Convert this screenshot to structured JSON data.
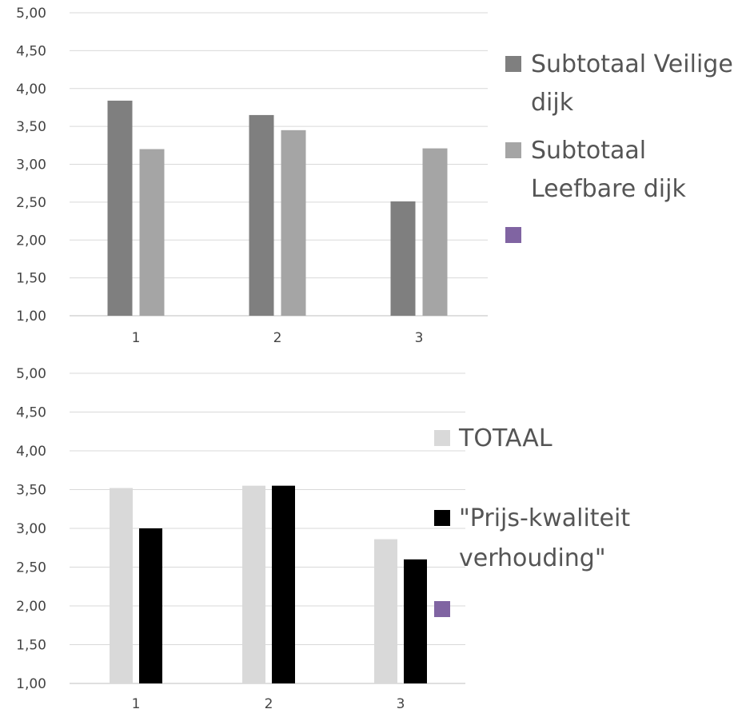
{
  "chart_data": [
    {
      "type": "bar",
      "categories": [
        "1",
        "2",
        "3"
      ],
      "series": [
        {
          "name": "Subtotaal Veilige dijk",
          "values": [
            3.84,
            3.65,
            2.51
          ],
          "color": "#7f7f7f",
          "legend_lines": [
            "Subtotaal Veilige",
            "dijk"
          ]
        },
        {
          "name": "Subtotaal Leefbare dijk",
          "values": [
            3.2,
            3.45,
            3.21
          ],
          "color": "#a5a5a5",
          "legend_lines": [
            "Subtotaal",
            "Leefbare dijk"
          ]
        }
      ],
      "extra_legend_color": "#8064a2",
      "y_ticks": [
        "1,00",
        "1,50",
        "2,00",
        "2,50",
        "3,00",
        "3,50",
        "4,00",
        "4,50",
        "5,00"
      ],
      "ylim": [
        1,
        5
      ],
      "grid": true,
      "legend": "right"
    },
    {
      "type": "bar",
      "categories": [
        "1",
        "2",
        "3"
      ],
      "series": [
        {
          "name": "TOTAAL",
          "values": [
            3.52,
            3.55,
            2.86
          ],
          "color": "#d9d9d9",
          "legend_lines": [
            "TOTAAL"
          ]
        },
        {
          "name": "\"Prijs-kwaliteit verhouding\"",
          "values": [
            3.0,
            3.55,
            2.6
          ],
          "color": "#000000",
          "legend_lines": [
            "\"Prijs-kwaliteit",
            "verhouding\""
          ]
        }
      ],
      "extra_legend_color": "#8064a2",
      "y_ticks": [
        "1,00",
        "1,50",
        "2,00",
        "2,50",
        "3,00",
        "3,50",
        "4,00",
        "4,50",
        "5,00"
      ],
      "ylim": [
        1,
        5
      ],
      "grid": true,
      "legend": "right"
    }
  ]
}
